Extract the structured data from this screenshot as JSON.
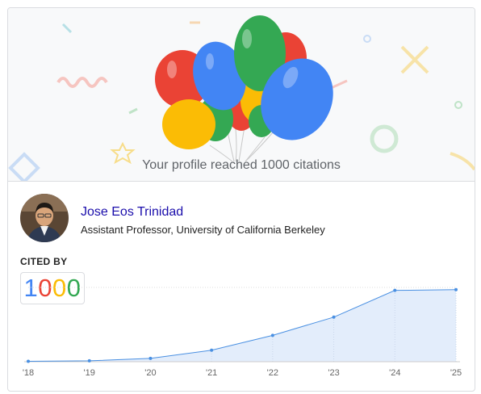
{
  "banner": {
    "message": "Your profile reached 1000 citations"
  },
  "profile": {
    "name": "Jose Eos Trinidad",
    "affiliation": "Assistant Professor, University of California Berkeley"
  },
  "citations": {
    "heading": "CITED BY",
    "digits": [
      {
        "char": "1",
        "color": "#4285f4"
      },
      {
        "char": "0",
        "color": "#ea4335"
      },
      {
        "char": "0",
        "color": "#fbbc05"
      },
      {
        "char": "0",
        "color": "#34a853"
      }
    ]
  },
  "colors": {
    "blue": "#4285f4",
    "red": "#ea4335",
    "yellow": "#fbbc05",
    "green": "#34a853",
    "link": "#1a0dab",
    "chart_line": "#4a90e2",
    "chart_fill": "#e3edfb"
  },
  "chart_data": {
    "type": "area",
    "x": [
      "'18",
      "'19",
      "'20",
      "'21",
      "'22",
      "'23",
      "'24",
      "'25"
    ],
    "y": [
      5,
      12,
      45,
      155,
      355,
      600,
      960,
      970
    ],
    "ylim": [
      0,
      1000
    ],
    "grid": "vertical-dotted",
    "xlabel": "",
    "ylabel": ""
  }
}
